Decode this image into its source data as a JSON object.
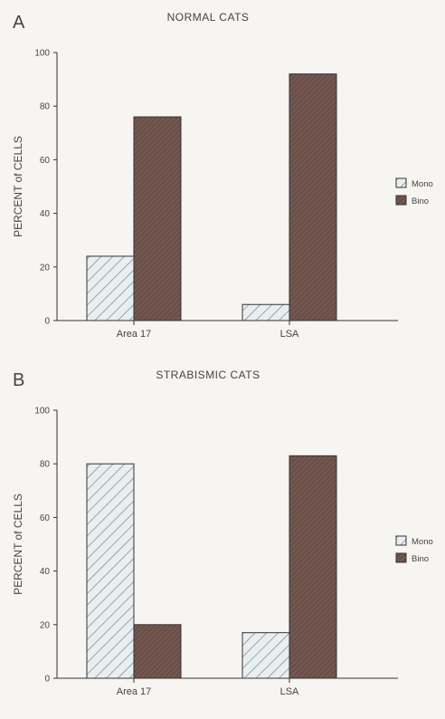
{
  "chart_data": [
    {
      "type": "bar",
      "panel_letter": "A",
      "title": "NORMAL CATS",
      "ylabel": "PERCENT of CELLS",
      "xlabel": "",
      "categories": [
        "Area  17",
        "LSA"
      ],
      "series": [
        {
          "name": "Mono",
          "values": [
            24,
            6
          ]
        },
        {
          "name": "Bino",
          "values": [
            76,
            92
          ]
        }
      ],
      "ylim": [
        0,
        100
      ],
      "yticks": [
        0,
        20,
        40,
        60,
        80,
        100
      ],
      "legend_position": "right",
      "grid": false
    },
    {
      "type": "bar",
      "panel_letter": "B",
      "title": "STRABISMIC CATS",
      "ylabel": "PERCENT of CELLS",
      "xlabel": "",
      "categories": [
        "Area  17",
        "LSA"
      ],
      "series": [
        {
          "name": "Mono",
          "values": [
            80,
            17
          ]
        },
        {
          "name": "Bino",
          "values": [
            20,
            83
          ]
        }
      ],
      "ylim": [
        0,
        100
      ],
      "yticks": [
        0,
        20,
        40,
        60,
        80,
        100
      ],
      "legend_position": "right",
      "grid": false
    }
  ],
  "colors": {
    "mono_fill": "#e9eef0",
    "mono_hatch": "#6f7f86",
    "bino_fill": "#6a4f48",
    "bino_hatch": "#8d7168",
    "axis": "#333333"
  }
}
